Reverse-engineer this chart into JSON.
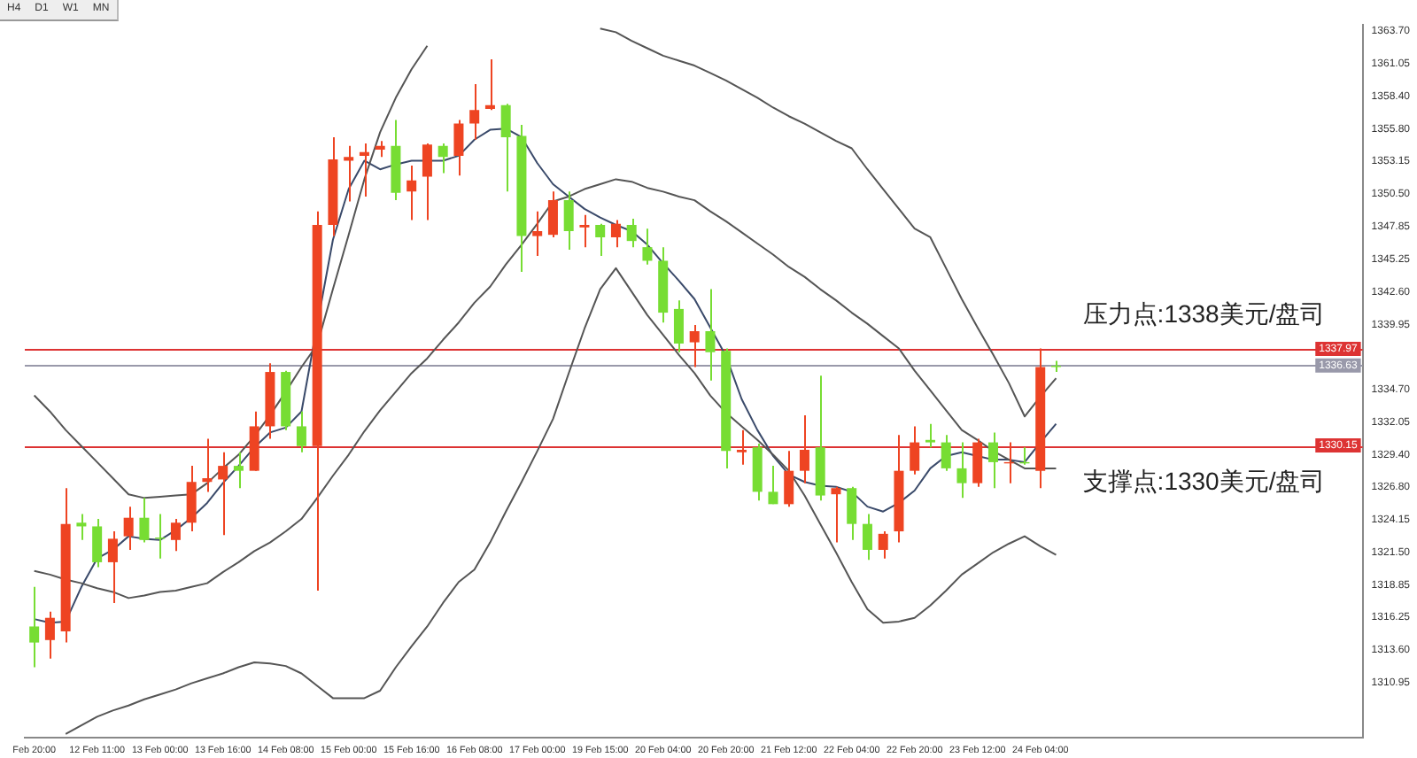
{
  "chart_data": {
    "type": "candlestick",
    "categories": [
      "Feb 20:00",
      null,
      null,
      null,
      "12 Feb 11:00",
      null,
      null,
      null,
      "13 Feb 00:00",
      null,
      null,
      null,
      "13 Feb 16:00",
      null,
      null,
      null,
      "14 Feb 08:00",
      null,
      null,
      null,
      "15 Feb 00:00",
      null,
      null,
      null,
      "15 Feb 16:00",
      null,
      null,
      null,
      "16 Feb 08:00",
      null,
      null,
      null,
      "17 Feb 00:00",
      null,
      null,
      null,
      "19 Feb 15:00",
      null,
      null,
      null,
      "20 Feb 04:00",
      null,
      null,
      null,
      "20 Feb 20:00",
      null,
      null,
      null,
      "21 Feb 12:00",
      null,
      null,
      null,
      "22 Feb 04:00",
      null,
      null,
      null,
      "22 Feb 20:00",
      null,
      null,
      null,
      "23 Feb 12:00",
      null,
      null,
      null,
      "24 Feb 04:00",
      null
    ],
    "ohlc": [
      [
        1315.5,
        1318.7,
        1312.2,
        1314.2
      ],
      [
        1314.4,
        1316.7,
        1312.9,
        1316.2
      ],
      [
        1315.1,
        1326.7,
        1314.2,
        1323.8
      ],
      [
        1323.9,
        1324.6,
        1322.5,
        1323.6
      ],
      [
        1323.6,
        1324.2,
        1320.3,
        1320.7
      ],
      [
        1320.7,
        1323.2,
        1317.4,
        1322.6
      ],
      [
        1322.8,
        1325.2,
        1321.7,
        1324.3
      ],
      [
        1324.3,
        1325.9,
        1322.3,
        1322.5
      ],
      [
        1322.7,
        1324.6,
        1321.0,
        1322.6
      ],
      [
        1322.5,
        1324.2,
        1321.6,
        1323.9
      ],
      [
        1323.9,
        1328.5,
        1323.2,
        1327.2
      ],
      [
        1327.2,
        1330.7,
        1326.4,
        1327.5
      ],
      [
        1327.4,
        1329.6,
        1322.9,
        1328.5
      ],
      [
        1328.5,
        1329.6,
        1326.7,
        1328.1
      ],
      [
        1328.1,
        1332.9,
        1328.1,
        1331.7
      ],
      [
        1331.7,
        1336.8,
        1330.7,
        1336.1
      ],
      [
        1336.1,
        1336.2,
        1331.4,
        1331.7
      ],
      [
        1331.7,
        1332.9,
        1329.6,
        1330.1
      ],
      [
        1330.1,
        1349.1,
        1318.4,
        1348.0
      ],
      [
        1348.0,
        1355.1,
        1347.1,
        1353.3
      ],
      [
        1353.2,
        1354.4,
        1349.9,
        1353.5
      ],
      [
        1353.6,
        1354.6,
        1350.3,
        1353.9
      ],
      [
        1354.1,
        1354.8,
        1353.5,
        1354.4
      ],
      [
        1354.4,
        1356.5,
        1350.0,
        1350.6
      ],
      [
        1350.7,
        1352.8,
        1348.4,
        1351.6
      ],
      [
        1351.9,
        1354.6,
        1348.4,
        1354.5
      ],
      [
        1354.4,
        1354.6,
        1352.2,
        1353.5
      ],
      [
        1353.6,
        1356.5,
        1352.0,
        1356.2
      ],
      [
        1356.2,
        1359.4,
        1354.9,
        1357.3
      ],
      [
        1357.4,
        1361.4,
        1357.3,
        1357.7
      ],
      [
        1357.7,
        1357.8,
        1350.7,
        1355.1
      ],
      [
        1355.2,
        1356.1,
        1344.2,
        1347.1
      ],
      [
        1347.1,
        1349.1,
        1345.5,
        1347.5
      ],
      [
        1347.2,
        1350.7,
        1347.0,
        1350.0
      ],
      [
        1350.0,
        1350.7,
        1346.0,
        1347.5
      ],
      [
        1347.8,
        1348.8,
        1346.2,
        1348.0
      ],
      [
        1348.0,
        1348.1,
        1345.5,
        1347.0
      ],
      [
        1347.0,
        1348.4,
        1346.2,
        1348.1
      ],
      [
        1348.0,
        1348.5,
        1346.2,
        1346.7
      ],
      [
        1346.2,
        1347.7,
        1344.8,
        1345.1
      ],
      [
        1345.1,
        1346.2,
        1340.1,
        1340.9
      ],
      [
        1341.2,
        1341.9,
        1337.7,
        1338.4
      ],
      [
        1338.5,
        1339.9,
        1336.5,
        1339.4
      ],
      [
        1339.4,
        1342.8,
        1335.4,
        1337.7
      ],
      [
        1337.8,
        1338.0,
        1328.3,
        1329.7
      ],
      [
        1329.6,
        1331.4,
        1328.6,
        1329.8
      ],
      [
        1330.0,
        1330.3,
        1325.7,
        1326.4
      ],
      [
        1326.4,
        1328.5,
        1325.4,
        1325.4
      ],
      [
        1325.4,
        1329.7,
        1325.2,
        1328.1
      ],
      [
        1328.1,
        1332.6,
        1327.1,
        1329.8
      ],
      [
        1330.0,
        1335.8,
        1325.7,
        1326.1
      ],
      [
        1326.2,
        1326.8,
        1322.3,
        1326.7
      ],
      [
        1326.7,
        1326.8,
        1322.5,
        1323.8
      ],
      [
        1323.8,
        1324.6,
        1320.9,
        1321.7
      ],
      [
        1321.7,
        1323.2,
        1321.0,
        1323.0
      ],
      [
        1323.2,
        1331.0,
        1322.3,
        1328.1
      ],
      [
        1328.1,
        1331.7,
        1327.8,
        1330.4
      ],
      [
        1330.6,
        1331.9,
        1330.0,
        1330.4
      ],
      [
        1330.4,
        1331.0,
        1328.1,
        1328.3
      ],
      [
        1328.3,
        1330.4,
        1325.9,
        1327.1
      ],
      [
        1327.1,
        1330.7,
        1326.8,
        1330.4
      ],
      [
        1330.4,
        1331.2,
        1326.7,
        1328.8
      ],
      [
        1328.7,
        1330.4,
        1327.1,
        1328.8
      ],
      [
        1328.8,
        1330.0,
        1328.6,
        1328.7
      ],
      [
        1328.1,
        1338.0,
        1326.7,
        1336.5
      ],
      [
        1336.6,
        1337.0,
        1336.1,
        1336.5
      ]
    ],
    "colors": [
      "#77dd33",
      "#ee4422",
      "#ee4422",
      "#77dd33",
      "#77dd33",
      "#ee4422",
      "#ee4422",
      "#77dd33",
      "#77dd33",
      "#ee4422",
      "#ee4422",
      "#ee4422",
      "#ee4422",
      "#77dd33",
      "#ee4422",
      "#ee4422",
      "#77dd33",
      "#77dd33",
      "#ee4422",
      "#ee4422",
      "#ee4422",
      "#ee4422",
      "#ee4422",
      "#77dd33",
      "#ee4422",
      "#ee4422",
      "#77dd33",
      "#ee4422",
      "#ee4422",
      "#ee4422",
      "#77dd33",
      "#77dd33",
      "#ee4422",
      "#ee4422",
      "#77dd33",
      "#ee4422",
      "#77dd33",
      "#ee4422",
      "#77dd33",
      "#77dd33",
      "#77dd33",
      "#77dd33",
      "#ee4422",
      "#77dd33",
      "#77dd33",
      "#ee4422",
      "#77dd33",
      "#77dd33",
      "#ee4422",
      "#ee4422",
      "#77dd33",
      "#ee4422",
      "#77dd33",
      "#77dd33",
      "#ee4422",
      "#ee4422",
      "#ee4422",
      "#77dd33",
      "#77dd33",
      "#77dd33",
      "#ee4422",
      "#77dd33",
      "#ee4422",
      "#77dd33",
      "#ee4422",
      "#77dd33"
    ],
    "series": [
      {
        "type": "line",
        "color": "#555555",
        "values": [
          1334.2,
          1332.9,
          1331.4,
          1330.1,
          1328.8,
          1327.5,
          1326.2,
          1325.9,
          1326.0,
          1326.1,
          1326.2,
          1327.1,
          1328.3,
          1329.4,
          1330.9,
          1332.6,
          1334.5,
          1336.5,
          1338.3,
          1342.8,
          1347.2,
          1351.7,
          1355.5,
          1358.3,
          1360.6,
          1362.5,
          null,
          null,
          null,
          null,
          null,
          null,
          null,
          null,
          null,
          null,
          1363.9,
          1363.6,
          1362.9,
          1362.3,
          1361.7,
          1361.3,
          1360.9,
          1360.3,
          1359.7,
          1359.0,
          1358.3,
          1357.5,
          1356.8,
          1356.2,
          1355.5,
          1354.8,
          1354.2,
          1352.5,
          1350.9,
          1349.3,
          1347.7,
          1347.0,
          1344.5,
          1342.0,
          1339.7,
          1337.5,
          1335.2,
          1332.5,
          1334.1,
          1335.6
        ]
      },
      {
        "type": "line",
        "color": "#555555",
        "values": [
          1320.0,
          1319.7,
          1319.3,
          1319.0,
          1318.6,
          1318.3,
          1317.8,
          1318.0,
          1318.3,
          1318.4,
          1318.7,
          1319.0,
          1319.9,
          1320.7,
          1321.6,
          1322.3,
          1323.2,
          1324.2,
          1325.9,
          1327.7,
          1329.4,
          1331.3,
          1333.0,
          1334.5,
          1336.0,
          1337.2,
          1338.7,
          1340.1,
          1341.7,
          1343.0,
          1344.8,
          1346.4,
          1348.1,
          1349.9,
          1350.3,
          1350.9,
          1351.3,
          1351.7,
          1351.5,
          1351.0,
          1350.7,
          1350.3,
          1350.0,
          1349.1,
          1348.3,
          1347.4,
          1346.5,
          1345.6,
          1344.6,
          1343.8,
          1342.8,
          1341.9,
          1340.9,
          1340.0,
          1339.0,
          1338.0,
          1336.2,
          1334.6,
          1333.0,
          1331.4,
          1330.6,
          1329.7,
          1329.0,
          1328.3,
          1328.3,
          1328.3
        ]
      },
      {
        "type": "line",
        "color": "#555555",
        "values": [
          null,
          null,
          1306.8,
          1307.5,
          1308.2,
          1308.7,
          1309.1,
          1309.6,
          1310.0,
          1310.4,
          1310.9,
          1311.3,
          1311.7,
          1312.2,
          1312.6,
          1312.5,
          1312.3,
          1311.7,
          1310.7,
          1309.7,
          1309.7,
          1309.7,
          1310.3,
          1312.2,
          1313.9,
          1315.5,
          1317.4,
          1319.1,
          1320.1,
          1322.3,
          1324.8,
          1327.2,
          1329.7,
          1332.3,
          1336.0,
          1339.6,
          1342.8,
          1344.5,
          1342.6,
          1340.7,
          1339.1,
          1337.5,
          1336.0,
          1334.2,
          1332.8,
          1331.7,
          1330.6,
          1329.4,
          1328.1,
          1326.1,
          1323.8,
          1321.5,
          1319.1,
          1316.9,
          1315.8,
          1315.9,
          1316.2,
          1317.2,
          1318.4,
          1319.7,
          1320.6,
          1321.5,
          1322.2,
          1322.8,
          1322.0,
          1321.3
        ]
      },
      {
        "type": "line",
        "color": "#3a4a6a",
        "values": [
          1316.1,
          1315.8,
          1315.9,
          1318.7,
          1321.0,
          1321.7,
          1322.8,
          1322.6,
          1322.5,
          1323.3,
          1324.3,
          1325.5,
          1327.1,
          1328.5,
          1330.0,
          1331.2,
          1331.6,
          1332.9,
          1339.9,
          1346.8,
          1350.9,
          1353.2,
          1352.5,
          1352.9,
          1353.2,
          1353.2,
          1353.2,
          1353.6,
          1354.9,
          1355.7,
          1355.8,
          1355.1,
          1353.0,
          1351.3,
          1350.3,
          1349.3,
          1348.6,
          1348.0,
          1347.5,
          1346.4,
          1344.9,
          1343.5,
          1342.0,
          1339.7,
          1337.4,
          1333.9,
          1331.4,
          1329.3,
          1327.8,
          1327.2,
          1326.9,
          1326.8,
          1326.4,
          1325.2,
          1324.8,
          1325.5,
          1326.5,
          1328.3,
          1329.3,
          1329.6,
          1329.3,
          1329.0,
          1329.0,
          1328.8,
          1330.4,
          1331.9
        ]
      }
    ],
    "ylim": [
      1306.5,
      1364.2
    ],
    "yticks": [
      {
        "value": 1363.7,
        "label": "1363.70"
      },
      {
        "value": 1361.05,
        "label": "1361.05"
      },
      {
        "value": 1358.4,
        "label": "1358.40"
      },
      {
        "value": 1355.8,
        "label": "1355.80"
      },
      {
        "value": 1353.15,
        "label": "1353.15"
      },
      {
        "value": 1350.5,
        "label": "1350.50"
      },
      {
        "value": 1347.85,
        "label": "1347.85"
      },
      {
        "value": 1345.25,
        "label": "1345.25"
      },
      {
        "value": 1342.6,
        "label": "1342.60"
      },
      {
        "value": 1339.95,
        "label": "1339.95"
      },
      {
        "value": 1334.7,
        "label": "1334.70"
      },
      {
        "value": 1332.05,
        "label": "1332.05"
      },
      {
        "value": 1329.4,
        "label": "1329.40"
      },
      {
        "value": 1326.8,
        "label": "1326.80"
      },
      {
        "value": 1324.15,
        "label": "1324.15"
      },
      {
        "value": 1321.5,
        "label": "1321.50"
      },
      {
        "value": 1318.85,
        "label": "1318.85"
      },
      {
        "value": 1316.25,
        "label": "1316.25"
      },
      {
        "value": 1313.6,
        "label": "1313.60"
      },
      {
        "value": 1310.95,
        "label": "1310.95"
      }
    ],
    "ref_lines": [
      {
        "axis": "y",
        "value": 1337.97,
        "label": "1337.97",
        "color": "#dd3333"
      },
      {
        "axis": "y",
        "value": 1336.63,
        "label": "1336.63",
        "color": "#9999aa"
      },
      {
        "axis": "y",
        "value": 1330.15,
        "label": "1330.15",
        "color": "#dd3333"
      }
    ],
    "annotations": [
      "H4",
      "D1",
      "W1",
      "MN",
      {
        "text": "压力点:1338美元/盘司",
        "y": 1337.97
      },
      {
        "text": "支撑点:1330美元/盘司",
        "y": 1330.15
      }
    ]
  }
}
